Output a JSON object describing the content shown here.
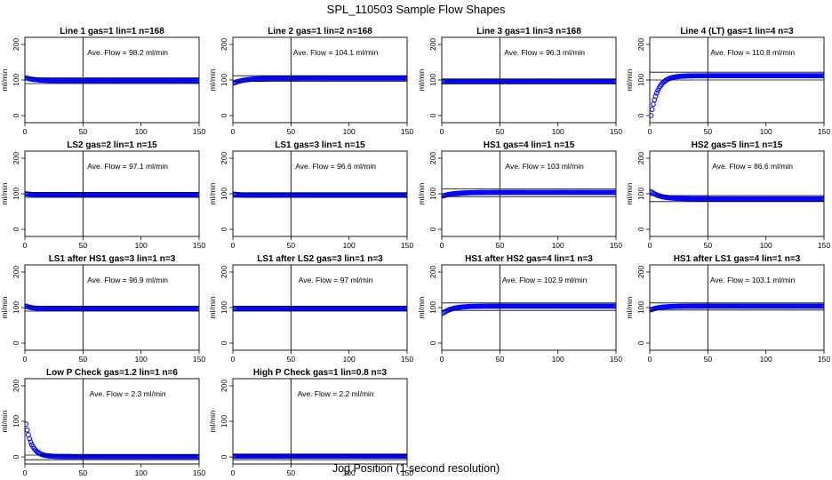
{
  "figure": {
    "title": "SPL_110503  Sample Flow Shapes",
    "xlabel": "Jog Position (1 second resolution)"
  },
  "style": {
    "point_color": "#0000ff",
    "line_color": "#000000"
  },
  "chart_data": [
    {
      "type": "scatter",
      "title": "Line 1 gas=1 lin=1 n=168",
      "ylabel": "ml/min",
      "annotation": "Ave. Flow =  98.2  ml/min",
      "xlim": [
        0,
        150
      ],
      "ylim": [
        -20,
        220
      ],
      "xticks": [
        0,
        50,
        100,
        150
      ],
      "yticks": [
        0,
        100,
        200
      ],
      "vline_x": 50,
      "hlines": [
        106,
        90
      ],
      "shape": {
        "start": 106,
        "plateau": 98,
        "tau": 8,
        "n": 150
      }
    },
    {
      "type": "scatter",
      "title": "Line 2 gas=1 lin=2 n=168",
      "ylabel": "ml/min",
      "annotation": "Ave. Flow = 104.1  ml/min",
      "xlim": [
        0,
        150
      ],
      "ylim": [
        -20,
        220
      ],
      "xticks": [
        0,
        50,
        100,
        150
      ],
      "yticks": [
        0,
        100,
        200
      ],
      "vline_x": 50,
      "hlines": [
        112,
        96
      ],
      "shape": {
        "start": 92,
        "plateau": 105,
        "tau": 10,
        "n": 150
      }
    },
    {
      "type": "scatter",
      "title": "Line 3 gas=1 lin=3 n=168",
      "ylabel": "ml/min",
      "annotation": "Ave. Flow =  96.3  ml/min",
      "xlim": [
        0,
        150
      ],
      "ylim": [
        -20,
        220
      ],
      "xticks": [
        0,
        50,
        100,
        150
      ],
      "yticks": [
        0,
        100,
        200
      ],
      "vline_x": 50,
      "hlines": [
        103,
        89
      ],
      "shape": {
        "start": 96,
        "plateau": 96,
        "tau": 5,
        "n": 150
      }
    },
    {
      "type": "scatter",
      "title": "Line 4 (LT) gas=1 lin=4 n=3",
      "ylabel": "ml/min",
      "annotation": "Ave. Flow = 110.8  ml/min",
      "xlim": [
        0,
        150
      ],
      "ylim": [
        -20,
        220
      ],
      "xticks": [
        0,
        50,
        100,
        150
      ],
      "yticks": [
        0,
        100,
        200
      ],
      "vline_x": 50,
      "hlines": [
        122,
        100
      ],
      "shape": {
        "start": 0,
        "plateau": 112,
        "tau": 6,
        "n": 150
      }
    },
    {
      "type": "scatter",
      "title": "LS2 gas=2 lin=1 n=15",
      "ylabel": "ml/min",
      "annotation": "Ave. Flow =  97.1  ml/min",
      "xlim": [
        0,
        150
      ],
      "ylim": [
        -20,
        220
      ],
      "xticks": [
        0,
        50,
        100,
        150
      ],
      "yticks": [
        0,
        100,
        200
      ],
      "vline_x": 50,
      "hlines": [
        104,
        90
      ],
      "shape": {
        "start": 100,
        "plateau": 97,
        "tau": 5,
        "n": 150
      }
    },
    {
      "type": "scatter",
      "title": "LS1 gas=3 lin=1 n=15",
      "ylabel": "ml/min",
      "annotation": "Ave. Flow =  96.6  ml/min",
      "xlim": [
        0,
        150
      ],
      "ylim": [
        -20,
        220
      ],
      "xticks": [
        0,
        50,
        100,
        150
      ],
      "yticks": [
        0,
        100,
        200
      ],
      "vline_x": 50,
      "hlines": [
        103,
        90
      ],
      "shape": {
        "start": 99,
        "plateau": 96,
        "tau": 5,
        "n": 150
      }
    },
    {
      "type": "scatter",
      "title": "HS1 gas=4 lin=1 n=15",
      "ylabel": "ml/min",
      "annotation": "Ave. Flow = 103  ml/min",
      "xlim": [
        0,
        150
      ],
      "ylim": [
        -20,
        220
      ],
      "xticks": [
        0,
        50,
        100,
        150
      ],
      "yticks": [
        0,
        100,
        200
      ],
      "vline_x": 50,
      "hlines": [
        114,
        92
      ],
      "shape": {
        "start": 94,
        "plateau": 104,
        "tau": 10,
        "n": 150
      }
    },
    {
      "type": "scatter",
      "title": "HS2 gas=5 lin=1 n=15",
      "ylabel": "ml/min",
      "annotation": "Ave. Flow =  86.6  ml/min",
      "xlim": [
        0,
        150
      ],
      "ylim": [
        -20,
        220
      ],
      "xticks": [
        0,
        50,
        100,
        150
      ],
      "yticks": [
        0,
        100,
        200
      ],
      "vline_x": 50,
      "hlines": [
        95,
        78
      ],
      "shape": {
        "start": 106,
        "plateau": 86,
        "tau": 8,
        "n": 150
      }
    },
    {
      "type": "scatter",
      "title": "LS1 after HS1 gas=3 lin=1 n=3",
      "ylabel": "ml/min",
      "annotation": "Ave. Flow =  96.9  ml/min",
      "xlim": [
        0,
        150
      ],
      "ylim": [
        -20,
        220
      ],
      "xticks": [
        0,
        50,
        100,
        150
      ],
      "yticks": [
        0,
        100,
        200
      ],
      "vline_x": 50,
      "hlines": [
        104,
        90
      ],
      "shape": {
        "start": 104,
        "plateau": 97,
        "tau": 5,
        "n": 150
      }
    },
    {
      "type": "scatter",
      "title": "LS1 after LS2 gas=3 lin=1 n=3",
      "ylabel": "ml/min",
      "annotation": "Ave. Flow =  97  ml/min",
      "xlim": [
        0,
        150
      ],
      "ylim": [
        -20,
        220
      ],
      "xticks": [
        0,
        50,
        100,
        150
      ],
      "yticks": [
        0,
        100,
        200
      ],
      "vline_x": 50,
      "hlines": [
        104,
        90
      ],
      "shape": {
        "start": 97,
        "plateau": 97,
        "tau": 5,
        "n": 150
      }
    },
    {
      "type": "scatter",
      "title": "HS1 after HS2 gas=4 lin=1 n=3",
      "ylabel": "ml/min",
      "annotation": "Ave. Flow = 102.9  ml/min",
      "xlim": [
        0,
        150
      ],
      "ylim": [
        -20,
        220
      ],
      "xticks": [
        0,
        50,
        100,
        150
      ],
      "yticks": [
        0,
        100,
        200
      ],
      "vline_x": 50,
      "hlines": [
        113,
        92
      ],
      "shape": {
        "start": 84,
        "plateau": 104,
        "tau": 8,
        "n": 150
      }
    },
    {
      "type": "scatter",
      "title": "HS1 after LS1 gas=4 lin=1 n=3",
      "ylabel": "ml/min",
      "annotation": "Ave. Flow = 103.1  ml/min",
      "xlim": [
        0,
        150
      ],
      "ylim": [
        -20,
        220
      ],
      "xticks": [
        0,
        50,
        100,
        150
      ],
      "yticks": [
        0,
        100,
        200
      ],
      "vline_x": 50,
      "hlines": [
        113,
        93
      ],
      "shape": {
        "start": 94,
        "plateau": 104,
        "tau": 8,
        "n": 150
      }
    },
    {
      "type": "scatter",
      "title": "Low P Check gas=1.2 lin=1 n=6",
      "ylabel": "ml/min",
      "annotation": "Ave. Flow =  2.3  ml/min",
      "xlim": [
        0,
        150
      ],
      "ylim": [
        -20,
        220
      ],
      "xticks": [
        0,
        50,
        100,
        150
      ],
      "yticks": [
        0,
        100,
        200
      ],
      "vline_x": 50,
      "hlines": [
        5,
        -8
      ],
      "shape": {
        "start": 92,
        "plateau": 1,
        "tau": 5,
        "n": 150
      }
    },
    {
      "type": "scatter",
      "title": "High P Check gas=1 lin=0.8 n=3",
      "ylabel": "ml/min",
      "annotation": "Ave. Flow =  2.2  ml/min",
      "xlim": [
        0,
        150
      ],
      "ylim": [
        -20,
        220
      ],
      "xticks": [
        0,
        50,
        100,
        150
      ],
      "yticks": [
        0,
        100,
        200
      ],
      "vline_x": 50,
      "hlines": [
        5,
        -8
      ],
      "shape": {
        "start": 2,
        "plateau": 2,
        "tau": 5,
        "n": 150
      }
    }
  ]
}
